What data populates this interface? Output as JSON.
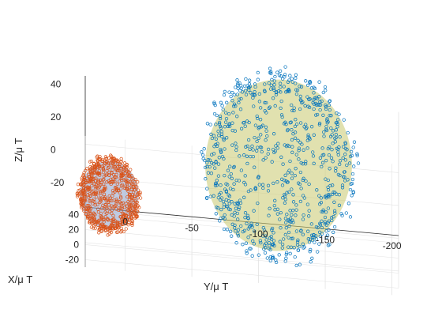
{
  "chart_data": {
    "type": "scatter",
    "view": "3d",
    "axes": {
      "x": {
        "label": "X/μ T",
        "ticks": [
          "40",
          "20",
          "0",
          "-20"
        ]
      },
      "y": {
        "label": "Y/μ T",
        "ticks": [
          "0",
          "-50",
          "-100",
          "-150",
          "-200"
        ]
      },
      "z": {
        "label": "Z/μ T",
        "ticks": [
          "40",
          "20",
          "0",
          "-20"
        ]
      }
    },
    "grid": true,
    "legend": "none",
    "series": [
      {
        "marker": "circle-open",
        "color": "#d95319",
        "center": {
          "x": 10,
          "y": 12,
          "z": -8
        },
        "radius": 22,
        "n": 700,
        "ellipsoid_color": "#8da0c8"
      },
      {
        "marker": "circle-open",
        "color": "#0072bd",
        "center": {
          "x": 20,
          "y": -115,
          "z": 15
        },
        "radius": 55,
        "n": 800,
        "ellipsoid_color": "#c8c86e"
      }
    ]
  }
}
